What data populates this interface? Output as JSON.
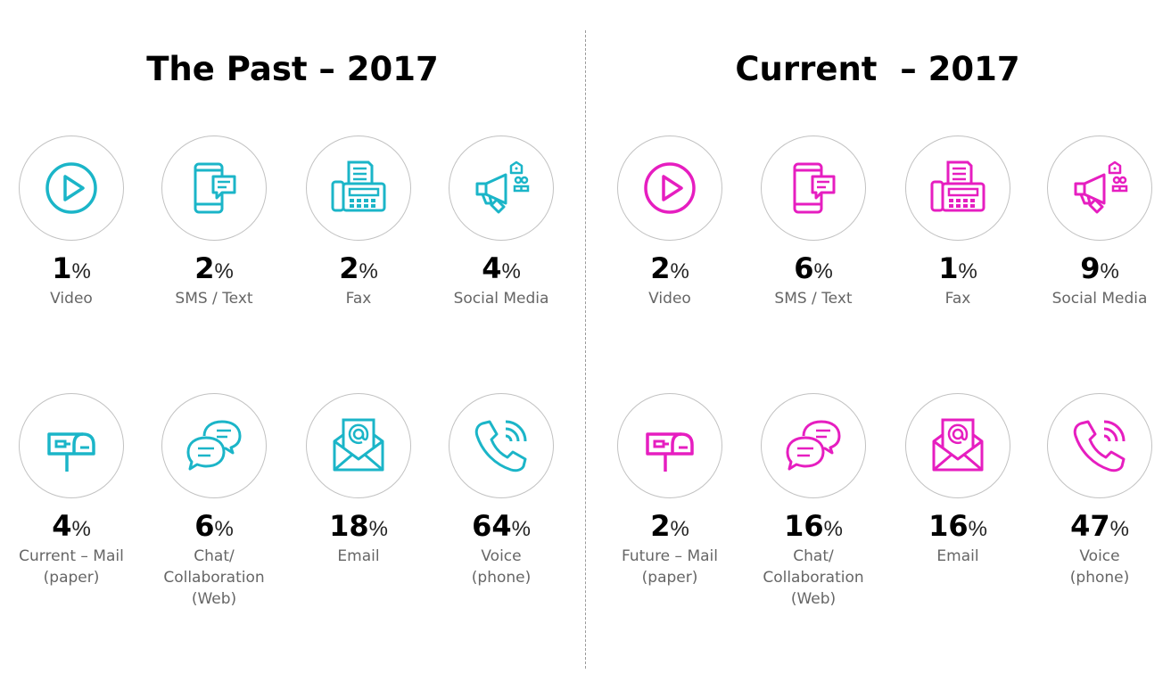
{
  "panels": {
    "past": {
      "title": "The Past – 2017",
      "accent": "#1bb5c8",
      "items": [
        {
          "icon": "video-icon",
          "value": "1",
          "unit": "%",
          "label": "Video"
        },
        {
          "icon": "sms-text-icon",
          "value": "2",
          "unit": "%",
          "label": "SMS / Text"
        },
        {
          "icon": "fax-icon",
          "value": "2",
          "unit": "%",
          "label": "Fax"
        },
        {
          "icon": "social-media-icon",
          "value": "4",
          "unit": "%",
          "label": "Social Media"
        },
        {
          "icon": "mailbox-icon",
          "value": "4",
          "unit": "%",
          "label": "Current – Mail\n(paper)"
        },
        {
          "icon": "chat-icon",
          "value": "6",
          "unit": "%",
          "label": "Chat/\nCollaboration\n(Web)"
        },
        {
          "icon": "email-icon",
          "value": "18",
          "unit": "%",
          "label": "Email"
        },
        {
          "icon": "phone-icon",
          "value": "64",
          "unit": "%",
          "label": "Voice\n(phone)"
        }
      ]
    },
    "current": {
      "title": "Current  – 2017",
      "accent": "#e61ec0",
      "items": [
        {
          "icon": "video-icon",
          "value": "2",
          "unit": "%",
          "label": "Video"
        },
        {
          "icon": "sms-text-icon",
          "value": "6",
          "unit": "%",
          "label": "SMS / Text"
        },
        {
          "icon": "fax-icon",
          "value": "1",
          "unit": "%",
          "label": "Fax"
        },
        {
          "icon": "social-media-icon",
          "value": "9",
          "unit": "%",
          "label": "Social Media"
        },
        {
          "icon": "mailbox-icon",
          "value": "2",
          "unit": "%",
          "label": "Future – Mail\n(paper)"
        },
        {
          "icon": "chat-icon",
          "value": "16",
          "unit": "%",
          "label": "Chat/\nCollaboration\n(Web)"
        },
        {
          "icon": "email-icon",
          "value": "16",
          "unit": "%",
          "label": "Email"
        },
        {
          "icon": "phone-icon",
          "value": "47",
          "unit": "%",
          "label": "Voice\n(phone)"
        }
      ]
    }
  }
}
